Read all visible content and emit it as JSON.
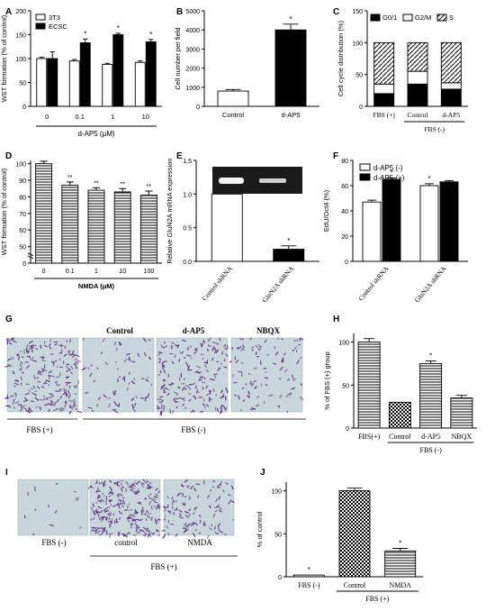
{
  "colors": {
    "black": "#000000",
    "white": "#ffffff",
    "gel_bg": "#1a1a1a",
    "gel_band": "#f2f2f2",
    "stain_bg": "#c9d6dc",
    "stain_cell": "#5a2a7a"
  },
  "patterns": {
    "Ctrl": "white",
    "A": "black",
    "D": "diag",
    "H": "hstripe",
    "C": "check"
  },
  "chart_data": [
    {
      "panel": "A",
      "type": "bar",
      "categories": [
        "0",
        "0.1",
        "1",
        "10"
      ],
      "series": [
        {
          "name": "3T3",
          "values": [
            100,
            95,
            88,
            92
          ],
          "errors": [
            3,
            3,
            2,
            3
          ],
          "sig": [
            "",
            "",
            "",
            ""
          ]
        },
        {
          "name": "ECSC",
          "values": [
            100,
            133,
            150,
            135
          ],
          "errors": [
            14,
            8,
            3,
            5
          ],
          "sig": [
            "",
            "*",
            "*",
            "*"
          ]
        }
      ],
      "xlabel": "d-AP5 (μM)",
      "ylabel": "WST formation (% of control)",
      "ylim": [
        0,
        200
      ],
      "yticks": [
        "0",
        "50",
        "100",
        "150",
        "200"
      ],
      "legend": "top-left"
    },
    {
      "panel": "B",
      "type": "bar",
      "categories": [
        "Control",
        "d-AP5"
      ],
      "values": [
        800,
        4000
      ],
      "errors": [
        80,
        300
      ],
      "sig": [
        "",
        "*"
      ],
      "ylabel": "Cell number per field",
      "ylim": [
        0,
        5000
      ],
      "yticks": [
        "0",
        "1000",
        "2000",
        "3000",
        "4000",
        "5000"
      ]
    },
    {
      "panel": "C",
      "type": "bar",
      "categories": [
        "FBS (+)",
        "Control",
        "d-AP5"
      ],
      "series": [
        {
          "name": "G0/1",
          "values": [
            20,
            35,
            27
          ]
        },
        {
          "name": "G2/M",
          "values": [
            15,
            20,
            10
          ]
        },
        {
          "name": "S",
          "values": [
            65,
            45,
            63
          ]
        }
      ],
      "group_label": "FBS (-)",
      "group_span": [
        1,
        2
      ],
      "ylabel": "Cell cycle distribution (%)",
      "ylim": [
        0,
        150
      ],
      "yticks": [
        "0",
        "50",
        "100",
        "150"
      ],
      "legend": "top"
    },
    {
      "panel": "D",
      "type": "bar",
      "categories": [
        "0",
        "0.1",
        "1",
        "10",
        "100"
      ],
      "values": [
        100,
        87,
        84,
        83,
        81
      ],
      "errors": [
        1.5,
        2,
        1.5,
        2,
        2.5
      ],
      "sig": [
        "",
        "**",
        "**",
        "**",
        "**"
      ],
      "xlabel": "NMDA (μM)",
      "ylabel": "WST formation (% of control)",
      "ylim": [
        0,
        105
      ],
      "yticks": [
        "0",
        "50",
        "60",
        "70",
        "80",
        "90",
        "100"
      ]
    },
    {
      "panel": "E",
      "type": "bar",
      "categories": [
        "Control shRNA",
        "GluN2A shRNA"
      ],
      "values": [
        1.0,
        0.18
      ],
      "errors": [
        0,
        0.05
      ],
      "sig": [
        "",
        "*"
      ],
      "ylabel": "Relative GluN2A mRNA expression",
      "ylim": [
        0,
        1.5
      ],
      "yticks": [
        "0.0",
        "0.5",
        "1.0",
        "1.5"
      ]
    },
    {
      "panel": "F",
      "type": "bar",
      "categories": [
        "Control shRNA",
        "GluN2A shRNA"
      ],
      "series": [
        {
          "name": "d-AP5 (-)",
          "values": [
            47,
            60
          ],
          "errors": [
            1.5,
            1.5
          ],
          "sig": [
            "",
            "*"
          ]
        },
        {
          "name": "d-AP5 (+)",
          "values": [
            65,
            63
          ],
          "errors": [
            1,
            1
          ],
          "sig": [
            "*",
            ""
          ]
        }
      ],
      "ylabel": "EdU/Oct4 (%)",
      "ylim": [
        0,
        80
      ],
      "yticks": [
        "0",
        "20",
        "40",
        "60",
        "80"
      ],
      "legend": "top-left"
    },
    {
      "panel": "H",
      "type": "bar",
      "categories": [
        "FBS(+)",
        "Control",
        "d-AP5",
        "NBQX"
      ],
      "values": [
        100,
        30,
        75,
        35
      ],
      "errors": [
        4,
        0,
        3,
        3
      ],
      "sig": [
        "",
        "",
        "*",
        ""
      ],
      "group_label": "FBS (-)",
      "group_span": [
        1,
        3
      ],
      "ylabel": "% of FBS (+) group",
      "ylim": [
        0,
        110
      ],
      "yticks": [
        "0",
        "50",
        "100"
      ]
    },
    {
      "panel": "J",
      "type": "bar",
      "categories": [
        "FBS (-)",
        "Control",
        "NMDA"
      ],
      "values": [
        2,
        100,
        30
      ],
      "errors": [
        0,
        3,
        3
      ],
      "sig": [
        "*",
        "",
        "*"
      ],
      "group_label": "FBS (+)",
      "group_span": [
        1,
        2
      ],
      "ylabel": "% of control",
      "ylim": [
        0,
        110
      ],
      "yticks": [
        "0",
        "50",
        "100"
      ]
    }
  ],
  "panelG": {
    "letter": "G",
    "image_labels": [
      "Control",
      "d-AP5",
      "NBQX"
    ],
    "bottom_left": "FBS (+)",
    "bottom_group": "FBS (-)",
    "densities": [
      0.85,
      0.25,
      0.7,
      0.35
    ]
  },
  "panelI": {
    "letter": "I",
    "image_labels": [
      "FBS (-)",
      "control",
      "NMDA"
    ],
    "bottom_group": "FBS (+)",
    "densities": [
      0.05,
      0.9,
      0.4
    ]
  }
}
